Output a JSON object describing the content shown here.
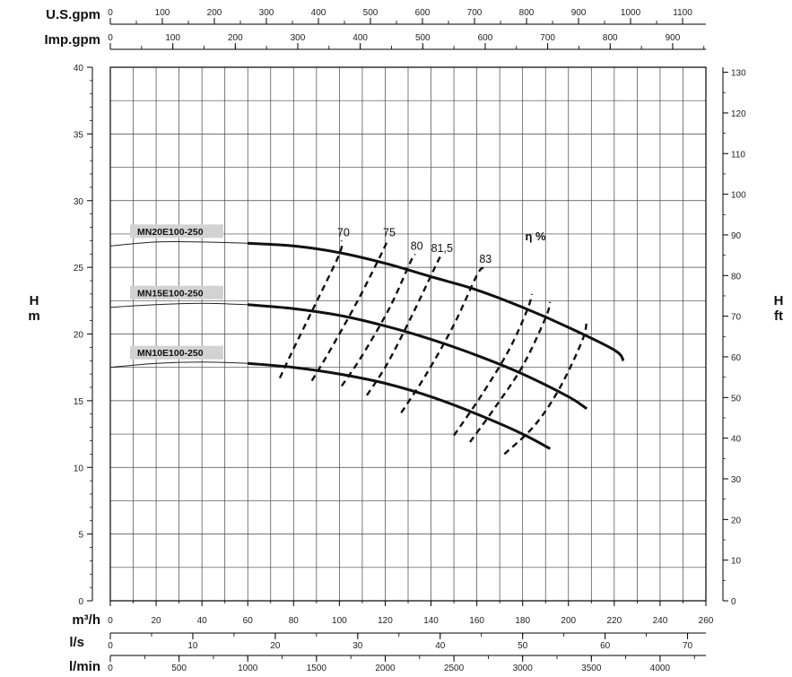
{
  "chart_data": {
    "type": "line",
    "title": "",
    "axes": {
      "flow_m3h": {
        "label": "m³/h",
        "range": [
          0,
          260
        ],
        "ticks": [
          0,
          20,
          40,
          60,
          80,
          100,
          120,
          140,
          160,
          180,
          200,
          220,
          240,
          260
        ]
      },
      "flow_ls": {
        "label": "l/s",
        "ticks": [
          0,
          10,
          20,
          30,
          40,
          50,
          60,
          70
        ]
      },
      "flow_lmin": {
        "label": "l/min",
        "ticks": [
          0,
          500,
          1000,
          1500,
          2000,
          2500,
          3000,
          3500,
          4000
        ]
      },
      "flow_usgpm": {
        "label": "U.S.gpm",
        "ticks": [
          0,
          100,
          200,
          300,
          400,
          500,
          600,
          700,
          800,
          900,
          1000,
          1100
        ]
      },
      "flow_impgpm": {
        "label": "Imp.gpm",
        "ticks": [
          0,
          100,
          200,
          300,
          400,
          500,
          600,
          700,
          800,
          900
        ]
      },
      "head_m": {
        "label_top": "H",
        "label_bottom": "m",
        "range": [
          0,
          40
        ],
        "ticks": [
          0,
          5,
          10,
          15,
          20,
          25,
          30,
          35,
          40
        ]
      },
      "head_ft": {
        "label_top": "H",
        "label_bottom": "ft",
        "ticks": [
          0,
          10,
          20,
          30,
          40,
          50,
          60,
          70,
          80,
          90,
          100,
          110,
          120,
          130
        ]
      }
    },
    "grid": true,
    "series": [
      {
        "name": "MN20E100-250",
        "thin": [
          [
            0,
            26.6
          ],
          [
            20,
            26.9
          ],
          [
            40,
            26.9
          ],
          [
            60,
            26.8
          ]
        ],
        "bold": [
          [
            60,
            26.8
          ],
          [
            80,
            26.6
          ],
          [
            100,
            26.1
          ],
          [
            120,
            25.3
          ],
          [
            140,
            24.3
          ],
          [
            160,
            23.3
          ],
          [
            180,
            22.0
          ],
          [
            200,
            20.5
          ],
          [
            220,
            18.8
          ],
          [
            224,
            18.0
          ]
        ]
      },
      {
        "name": "MN15E100-250",
        "thin": [
          [
            0,
            22.0
          ],
          [
            20,
            22.2
          ],
          [
            40,
            22.3
          ],
          [
            60,
            22.2
          ]
        ],
        "bold": [
          [
            60,
            22.2
          ],
          [
            80,
            21.9
          ],
          [
            100,
            21.4
          ],
          [
            120,
            20.6
          ],
          [
            140,
            19.6
          ],
          [
            160,
            18.4
          ],
          [
            180,
            17.0
          ],
          [
            200,
            15.3
          ],
          [
            208,
            14.4
          ]
        ]
      },
      {
        "name": "MN10E100-250",
        "thin": [
          [
            0,
            17.5
          ],
          [
            20,
            17.8
          ],
          [
            40,
            17.9
          ],
          [
            60,
            17.8
          ]
        ],
        "bold": [
          [
            60,
            17.8
          ],
          [
            80,
            17.5
          ],
          [
            100,
            17.0
          ],
          [
            120,
            16.3
          ],
          [
            140,
            15.3
          ],
          [
            160,
            14.0
          ],
          [
            180,
            12.5
          ],
          [
            192,
            11.4
          ]
        ]
      }
    ],
    "efficiency": {
      "label": "η %",
      "curves": [
        {
          "label": "70",
          "points": [
            [
              74,
              16.7
            ],
            [
              80,
              18.9
            ],
            [
              90,
              22.4
            ],
            [
              100,
              26.0
            ],
            [
              101,
              27.0
            ]
          ]
        },
        {
          "label": "75",
          "points": [
            [
              88,
              16.5
            ],
            [
              96,
              18.8
            ],
            [
              108,
              22.5
            ],
            [
              118,
              25.9
            ],
            [
              121,
              27.0
            ]
          ]
        },
        {
          "label": "80",
          "points": [
            [
              101,
              16.1
            ],
            [
              110,
              18.4
            ],
            [
              122,
              22.0
            ],
            [
              131,
              25.4
            ],
            [
              133,
              26.0
            ]
          ]
        },
        {
          "label": "81,5",
          "points": [
            [
              112,
              15.4
            ],
            [
              121,
              17.8
            ],
            [
              132,
              21.5
            ],
            [
              142,
              25.1
            ],
            [
              144,
              25.8
            ]
          ]
        },
        {
          "label": "83",
          "points": [
            [
              127,
              14.1
            ],
            [
              138,
              17.0
            ],
            [
              150,
              20.7
            ],
            [
              160,
              24.4
            ],
            [
              163,
              25.0
            ]
          ]
        },
        {
          "label": "",
          "points": [
            [
              150,
              12.4
            ],
            [
              162,
              15.4
            ],
            [
              174,
              18.8
            ],
            [
              182,
              21.8
            ],
            [
              184,
              23.0
            ]
          ]
        },
        {
          "label": "",
          "points": [
            [
              157,
              11.9
            ],
            [
              168,
              14.5
            ],
            [
              180,
              17.6
            ],
            [
              190,
              21.2
            ],
            [
              192,
              22.4
            ]
          ]
        },
        {
          "label": "",
          "points": [
            [
              172,
              11.0
            ],
            [
              185,
              13.1
            ],
            [
              196,
              15.9
            ],
            [
              206,
              19.5
            ],
            [
              208,
              21.0
            ]
          ]
        }
      ]
    }
  }
}
